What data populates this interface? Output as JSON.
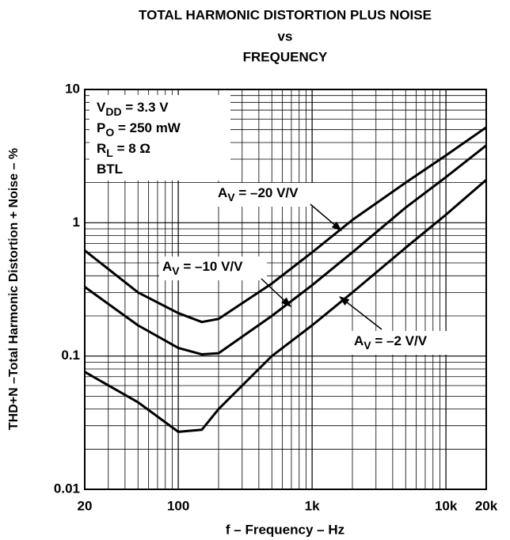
{
  "chart_data": {
    "type": "line",
    "title": [
      "TOTAL HARMONIC DISTORTION PLUS NOISE",
      "vs",
      "FREQUENCY"
    ],
    "x_label": "f – Frequency – Hz",
    "y_label": "THD+N –Total Harmonic Distortion + Noise – %",
    "x_scale": "log",
    "y_scale": "log",
    "grid": true,
    "minor_grid": true,
    "xlim": [
      20,
      20000
    ],
    "ylim": [
      0.01,
      10
    ],
    "xticks": [
      20,
      100,
      {
        "value": 1000,
        "label": "1k"
      },
      {
        "value": 10000,
        "label": "10k"
      },
      {
        "value": 20000,
        "label": "20k"
      }
    ],
    "yticks": [
      0.01,
      0.1,
      1,
      10
    ],
    "conditions": [
      [
        "V",
        "DD",
        " = 3.3 V"
      ],
      [
        "P",
        "O",
        " = 250 mW"
      ],
      [
        "R",
        "L",
        " = 8 Ω"
      ],
      [
        "BTL"
      ]
    ],
    "x": [
      20,
      50,
      100,
      150,
      200,
      500,
      1000,
      2000,
      5000,
      10000,
      20000
    ],
    "series": [
      {
        "label": [
          "A",
          "V",
          " = –20 V/V"
        ],
        "color": "#000000",
        "values": [
          0.62,
          0.3,
          0.21,
          0.18,
          0.19,
          0.35,
          0.6,
          1.05,
          2.0,
          3.2,
          5.2
        ]
      },
      {
        "label": [
          "A",
          "V",
          " = –10 V/V"
        ],
        "color": "#000000",
        "values": [
          0.33,
          0.17,
          0.115,
          0.103,
          0.105,
          0.2,
          0.34,
          0.6,
          1.3,
          2.2,
          3.8
        ]
      },
      {
        "label": [
          "A",
          "V",
          " = –2 V/V"
        ],
        "color": "#000000",
        "values": [
          0.076,
          0.045,
          0.027,
          0.028,
          0.04,
          0.1,
          0.17,
          0.3,
          0.65,
          1.15,
          2.1
        ]
      }
    ]
  }
}
